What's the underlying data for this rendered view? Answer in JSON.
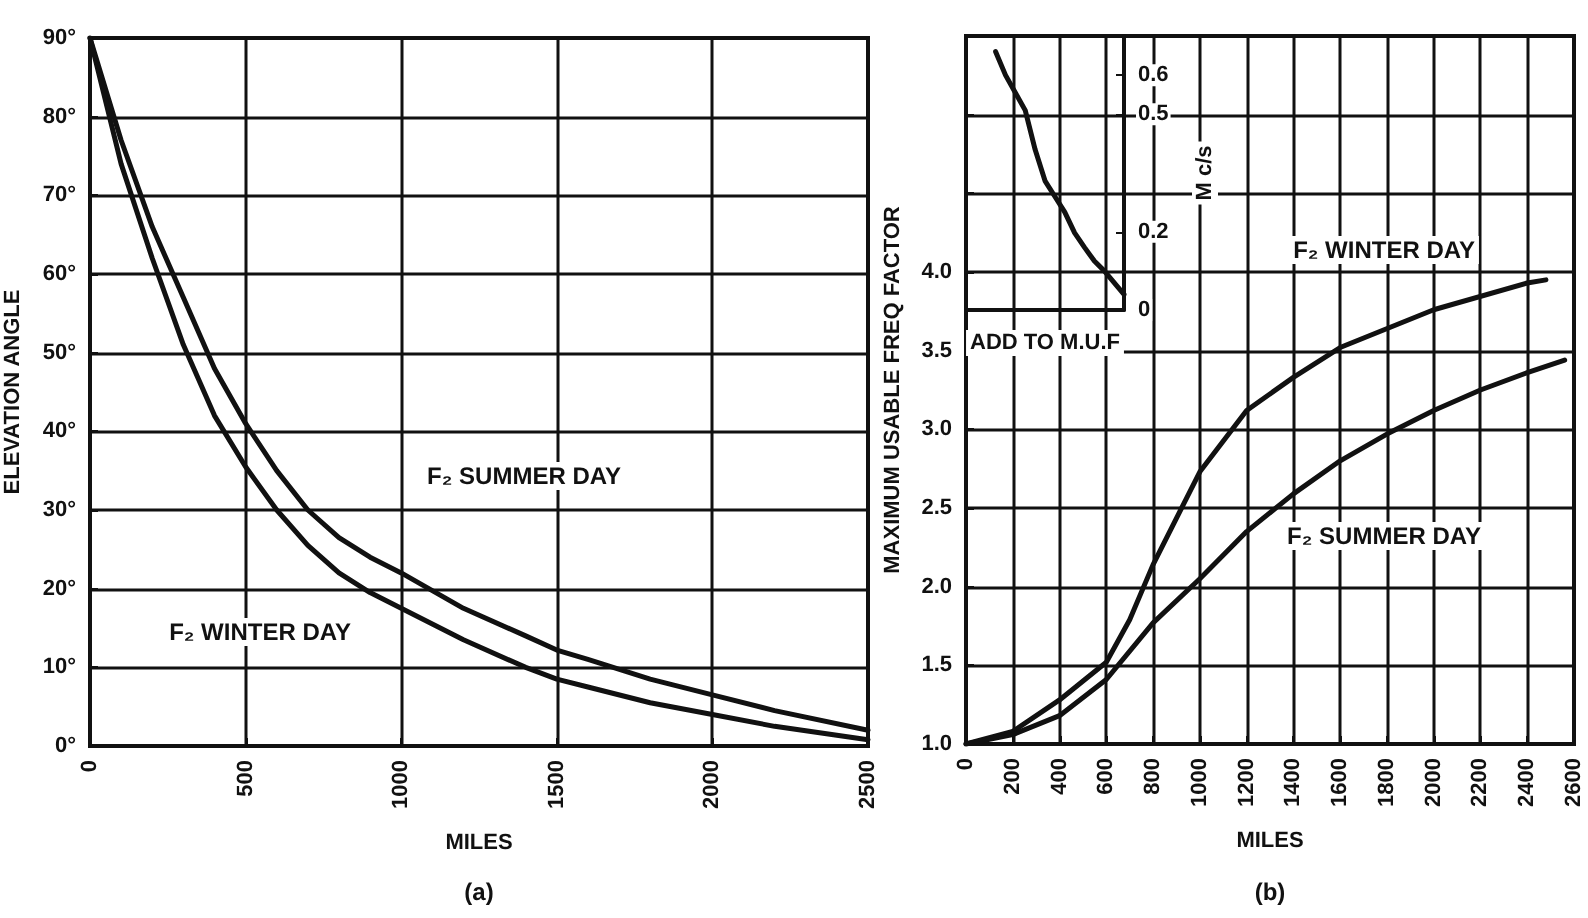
{
  "chart_data": [
    {
      "type": "line",
      "xlabel": "MILES",
      "ylabel": "ELEVATION ANGLE",
      "xlim": [
        0,
        2500
      ],
      "xticks": [
        0,
        500,
        1000,
        1500,
        2000,
        2500
      ],
      "ylim": [
        0,
        90
      ],
      "yticks": [
        {
          "value": 0,
          "label": "0°"
        },
        {
          "value": 10,
          "label": "10°"
        },
        {
          "value": 20,
          "label": "20°"
        },
        {
          "value": 30,
          "label": "30°"
        },
        {
          "value": 40,
          "label": "40°"
        },
        {
          "value": 50,
          "label": "50°"
        },
        {
          "value": 60,
          "label": "60°"
        },
        {
          "value": 70,
          "label": "70°"
        },
        {
          "value": 80,
          "label": "80°"
        },
        {
          "value": 90,
          "label": "90°"
        }
      ],
      "grid": true,
      "marker": "none",
      "line_style": "solid",
      "series": [
        {
          "color": "#111111",
          "x": [
            0,
            100,
            200,
            300,
            400,
            500,
            600,
            700,
            800,
            900,
            1000,
            1200,
            1400,
            1500,
            1600,
            1800,
            2000,
            2200,
            2500
          ],
          "values": [
            90,
            77,
            66,
            57,
            48,
            41,
            35,
            30,
            26.5,
            24,
            22,
            17.5,
            14,
            12.2,
            11,
            8.5,
            6.5,
            4.5,
            2
          ]
        },
        {
          "color": "#111111",
          "x": [
            0,
            100,
            200,
            300,
            400,
            500,
            600,
            700,
            800,
            900,
            1000,
            1200,
            1400,
            1500,
            1600,
            1800,
            2000,
            2200,
            2500
          ],
          "values": [
            90,
            74,
            62,
            51,
            42,
            35.5,
            30,
            25.5,
            22,
            19.5,
            17.5,
            13.5,
            10,
            8.5,
            7.5,
            5.5,
            4,
            2.5,
            0.8
          ]
        }
      ],
      "annotations": [
        "F₂ SUMMER DAY",
        "F₂ WINTER DAY",
        "(a)"
      ]
    },
    {
      "type": "line",
      "xlabel": "MILES",
      "ylabel": "MAXIMUM USABLE FREQ FACTOR",
      "xlim": [
        0,
        2600
      ],
      "xticks": [
        0,
        200,
        400,
        600,
        800,
        1000,
        1200,
        1400,
        1600,
        1800,
        2000,
        2200,
        2400,
        2600
      ],
      "ylim": [
        1,
        5.5
      ],
      "yticks": [
        {
          "value": 1,
          "label": "1.0"
        },
        {
          "value": 1.5,
          "label": "1.5"
        },
        {
          "value": 2,
          "label": "2.0"
        },
        {
          "value": 2.5,
          "label": "2.5"
        },
        {
          "value": 3,
          "label": "3.0"
        },
        {
          "value": 3.5,
          "label": "3.5"
        },
        {
          "value": 4,
          "label": "4.0"
        },
        {
          "value": 4.5,
          "label": null
        },
        {
          "value": 5,
          "label": null
        }
      ],
      "grid": true,
      "marker": "none",
      "line_style": "solid",
      "series": [
        {
          "color": "#111111",
          "x": [
            0,
            200,
            400,
            600,
            700,
            800,
            1000,
            1200,
            1400,
            1600,
            2000,
            2400,
            2480
          ],
          "values": [
            1.0,
            1.08,
            1.28,
            1.52,
            1.79,
            2.14,
            2.73,
            3.12,
            3.33,
            3.52,
            3.76,
            3.93,
            3.95
          ]
        },
        {
          "color": "#111111",
          "x": [
            0,
            200,
            400,
            600,
            800,
            1000,
            1200,
            1400,
            1600,
            1800,
            2000,
            2200,
            2400,
            2560
          ],
          "values": [
            1.0,
            1.06,
            1.18,
            1.41,
            1.77,
            2.05,
            2.35,
            2.59,
            2.8,
            2.97,
            3.12,
            3.25,
            3.36,
            3.44
          ]
        }
      ],
      "annotations": [
        "F₂ WINTER DAY",
        "F₂ SUMMER DAY",
        "(b)"
      ]
    },
    {
      "type": "line",
      "xlabel": "ADD TO M.U.F",
      "ylabel": "M c/s",
      "categories": [
        null,
        null,
        null,
        null,
        null,
        null,
        null,
        null,
        null,
        null,
        null,
        null,
        null,
        null,
        null,
        null,
        null
      ],
      "ylim": [
        0,
        0.7
      ],
      "yticks": [
        0,
        0.2,
        0.5,
        0.6
      ],
      "tick_labels": "y",
      "marker": "none",
      "line_style": "solid",
      "series": [
        {
          "color": "#111111",
          "values": [
            null,
            null,
            null,
            0.66,
            0.6,
            0.555,
            0.51,
            0.41,
            0.33,
            0.29,
            0.25,
            0.197,
            0.16,
            0.125,
            0.1,
            0.07,
            0.04
          ]
        }
      ]
    }
  ]
}
